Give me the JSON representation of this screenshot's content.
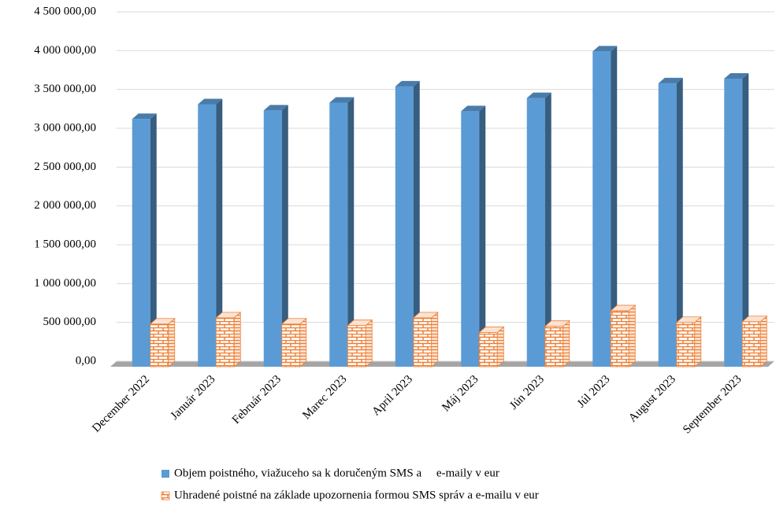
{
  "chart_data": {
    "type": "bar3d",
    "categories": [
      "December 2022",
      "Január 2023",
      "Február 2023",
      "Marec 2023",
      "April 2023",
      "Máj 2023",
      "Jún 2023",
      "Júl 2023",
      "August 2023",
      "September 2023"
    ],
    "series": [
      {
        "name": "Objem poistného, viažuceho sa k doručeným SMS a     e-maily v eur",
        "color": "#5b9bd5",
        "values": [
          3190000,
          3380000,
          3300000,
          3400000,
          3610000,
          3290000,
          3460000,
          4060000,
          3650000,
          3710000
        ]
      },
      {
        "name": "Uhradené poistné na základe upozornenia formou SMS správ a e-mailu v eur",
        "color": "#ed7d31",
        "values": [
          550000,
          630000,
          550000,
          530000,
          630000,
          440000,
          520000,
          720000,
          570000,
          580000
        ]
      }
    ],
    "ylim": [
      0,
      4500000
    ],
    "yticks": [
      {
        "value": 0,
        "label": "0,00"
      },
      {
        "value": 500000,
        "label": "500 000,00"
      },
      {
        "value": 1000000,
        "label": "1 000 000,00"
      },
      {
        "value": 1500000,
        "label": "1 500 000,00"
      },
      {
        "value": 2000000,
        "label": "2 000 000,00"
      },
      {
        "value": 2500000,
        "label": "2 500 000,00"
      },
      {
        "value": 3000000,
        "label": "3 000 000,00"
      },
      {
        "value": 3500000,
        "label": "3 500 000,00"
      },
      {
        "value": 4000000,
        "label": "4 000 000,00"
      },
      {
        "value": 4500000,
        "label": "4 500 000,00"
      }
    ],
    "grid": true
  }
}
